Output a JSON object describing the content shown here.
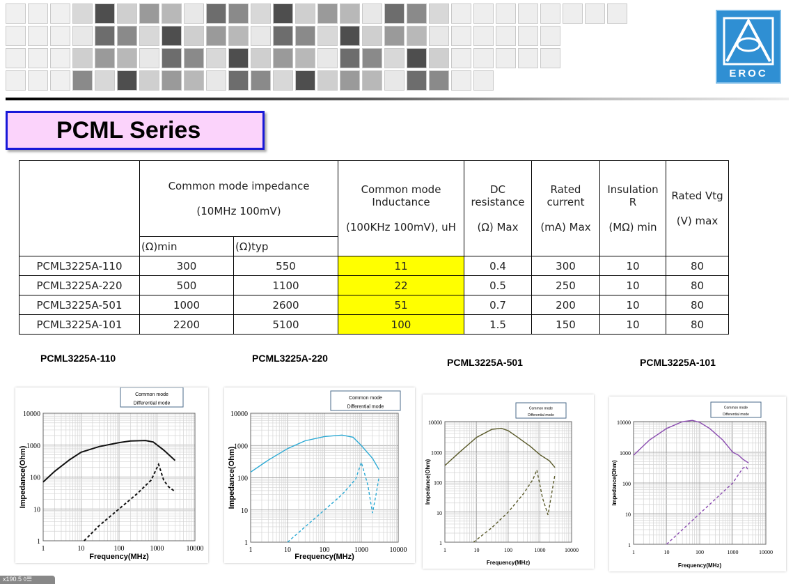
{
  "logo": {
    "text": "EROC"
  },
  "page_title": "PCML Series",
  "table": {
    "header": {
      "impedance": "Common mode impedance",
      "impedance_cond": "(10MHz 100mV)",
      "imp_min": "(Ω)min",
      "imp_typ": "(Ω)typ",
      "inductance": "Common mode Inductance",
      "inductance_cond": "(100KHz 100mV), uH",
      "dcr": "DC resistance",
      "dcr_unit": "(Ω) Max",
      "current": "Rated current",
      "current_unit": "(mA) Max",
      "insulation": "Insulation R",
      "insulation_unit": "(MΩ) min",
      "vtg": "Rated Vtg",
      "vtg_unit": "(V) max"
    },
    "rows": [
      [
        "PCML3225A-110",
        "300",
        "550",
        "11",
        "0.4",
        "300",
        "10",
        "80"
      ],
      [
        "PCML3225A-220",
        "500",
        "1100",
        "22",
        "0.5",
        "250",
        "10",
        "80"
      ],
      [
        "PCML3225A-501",
        "1000",
        "2600",
        "51",
        "0.7",
        "200",
        "10",
        "80"
      ],
      [
        "PCML3225A-101",
        "2200",
        "5100",
        "100",
        "1.5",
        "150",
        "10",
        "80"
      ]
    ],
    "highlight_color": "#ffff00"
  },
  "chart_data": [
    {
      "type": "line",
      "title": "PCML3225A-110",
      "xlabel": "Frequency(MHz)",
      "ylabel": "Impedance(Ohm)",
      "xscale": "log",
      "yscale": "log",
      "xlim": [
        1,
        10000
      ],
      "ylim": [
        1,
        10000
      ],
      "xticks": [
        "1",
        "10",
        "100",
        "1000",
        "10000"
      ],
      "yticks": [
        "1",
        "10",
        "100",
        "1000",
        "10000"
      ],
      "legend": [
        "Common mode",
        "Differential mode"
      ],
      "series": [
        {
          "name": "Common mode",
          "style": "solid",
          "color": "#111111",
          "x": [
            1,
            2,
            5,
            10,
            30,
            100,
            200,
            500,
            800,
            1500,
            3000
          ],
          "y": [
            70,
            150,
            350,
            600,
            900,
            1200,
            1350,
            1400,
            1250,
            700,
            330
          ]
        },
        {
          "name": "Differential mode",
          "style": "dashed",
          "color": "#111111",
          "x": [
            12,
            30,
            100,
            300,
            700,
            1100,
            1500,
            2000,
            3000
          ],
          "y": [
            1,
            3,
            10,
            30,
            80,
            250,
            80,
            50,
            35
          ]
        }
      ]
    },
    {
      "type": "line",
      "title": "PCML3225A-220",
      "xlabel": "Frequency(MHz)",
      "ylabel": "Impedance(Ohm)",
      "xscale": "log",
      "yscale": "log",
      "xlim": [
        1,
        10000
      ],
      "ylim": [
        1,
        10000
      ],
      "xticks": [
        "1",
        "10",
        "100",
        "1000",
        "10000"
      ],
      "yticks": [
        "1",
        "10",
        "100",
        "1000",
        "10000"
      ],
      "legend": [
        "Common mode",
        "Differential mode"
      ],
      "series": [
        {
          "name": "Common mode",
          "style": "solid",
          "color": "#2aa9d4",
          "x": [
            1,
            3,
            10,
            30,
            100,
            300,
            600,
            1000,
            2000,
            3000
          ],
          "y": [
            150,
            350,
            800,
            1400,
            1900,
            2100,
            1800,
            1000,
            400,
            180
          ]
        },
        {
          "name": "Differential mode",
          "style": "dashed",
          "color": "#2aa9d4",
          "x": [
            10,
            30,
            100,
            300,
            700,
            1000,
            1500,
            2000,
            2500,
            3000
          ],
          "y": [
            1,
            3,
            10,
            30,
            90,
            300,
            60,
            8,
            30,
            100
          ]
        }
      ]
    },
    {
      "type": "line",
      "title": "PCML3225A-501",
      "xlabel": "Frequency(MHz)",
      "ylabel": "Impedance(Ohm)",
      "xscale": "log",
      "yscale": "log",
      "xlim": [
        1,
        10000
      ],
      "ylim": [
        1,
        10000
      ],
      "xticks": [
        "1",
        "10",
        "100",
        "1000",
        "10000"
      ],
      "yticks": [
        "1",
        "10",
        "100",
        "1000",
        "10000"
      ],
      "legend": [
        "Common mode",
        "Differential mode"
      ],
      "series": [
        {
          "name": "Common mode",
          "style": "solid",
          "color": "#5a5a2a",
          "x": [
            1,
            3,
            10,
            30,
            60,
            100,
            200,
            500,
            1000,
            2000,
            3000
          ],
          "y": [
            350,
            1000,
            3000,
            5500,
            6000,
            5000,
            3000,
            1500,
            800,
            500,
            300
          ]
        },
        {
          "name": "Differential mode",
          "style": "dashed",
          "color": "#5a5a2a",
          "x": [
            8,
            30,
            100,
            300,
            600,
            800,
            1200,
            1800,
            2500,
            3000
          ],
          "y": [
            1,
            3,
            10,
            40,
            120,
            250,
            30,
            8,
            60,
            180
          ]
        }
      ]
    },
    {
      "type": "line",
      "title": "PCML3225A-101",
      "xlabel": "Frequency(MHz)",
      "ylabel": "Impedance(Ohm)",
      "xscale": "log",
      "yscale": "log",
      "xlim": [
        1,
        10000
      ],
      "ylim": [
        1,
        10000
      ],
      "xticks": [
        "1",
        "10",
        "100",
        "1000",
        "10000"
      ],
      "yticks": [
        "1",
        "10",
        "100",
        "1000",
        "10000"
      ],
      "legend": [
        "Common mode",
        "Differential mode"
      ],
      "series": [
        {
          "name": "Common mode",
          "style": "solid",
          "color": "#8a4bb0",
          "x": [
            1,
            3,
            10,
            30,
            60,
            100,
            200,
            500,
            1000,
            1500,
            2000,
            3000
          ],
          "y": [
            800,
            2500,
            6000,
            10000,
            11000,
            9500,
            6000,
            2500,
            1000,
            800,
            600,
            450
          ]
        },
        {
          "name": "Differential mode",
          "style": "dashed",
          "color": "#8a4bb0",
          "x": [
            10,
            30,
            100,
            300,
            1000,
            2000,
            2500,
            3000
          ],
          "y": [
            1,
            3,
            10,
            30,
            100,
            300,
            350,
            250
          ]
        }
      ]
    }
  ],
  "footer_badge": "x190.5 ◊☰"
}
